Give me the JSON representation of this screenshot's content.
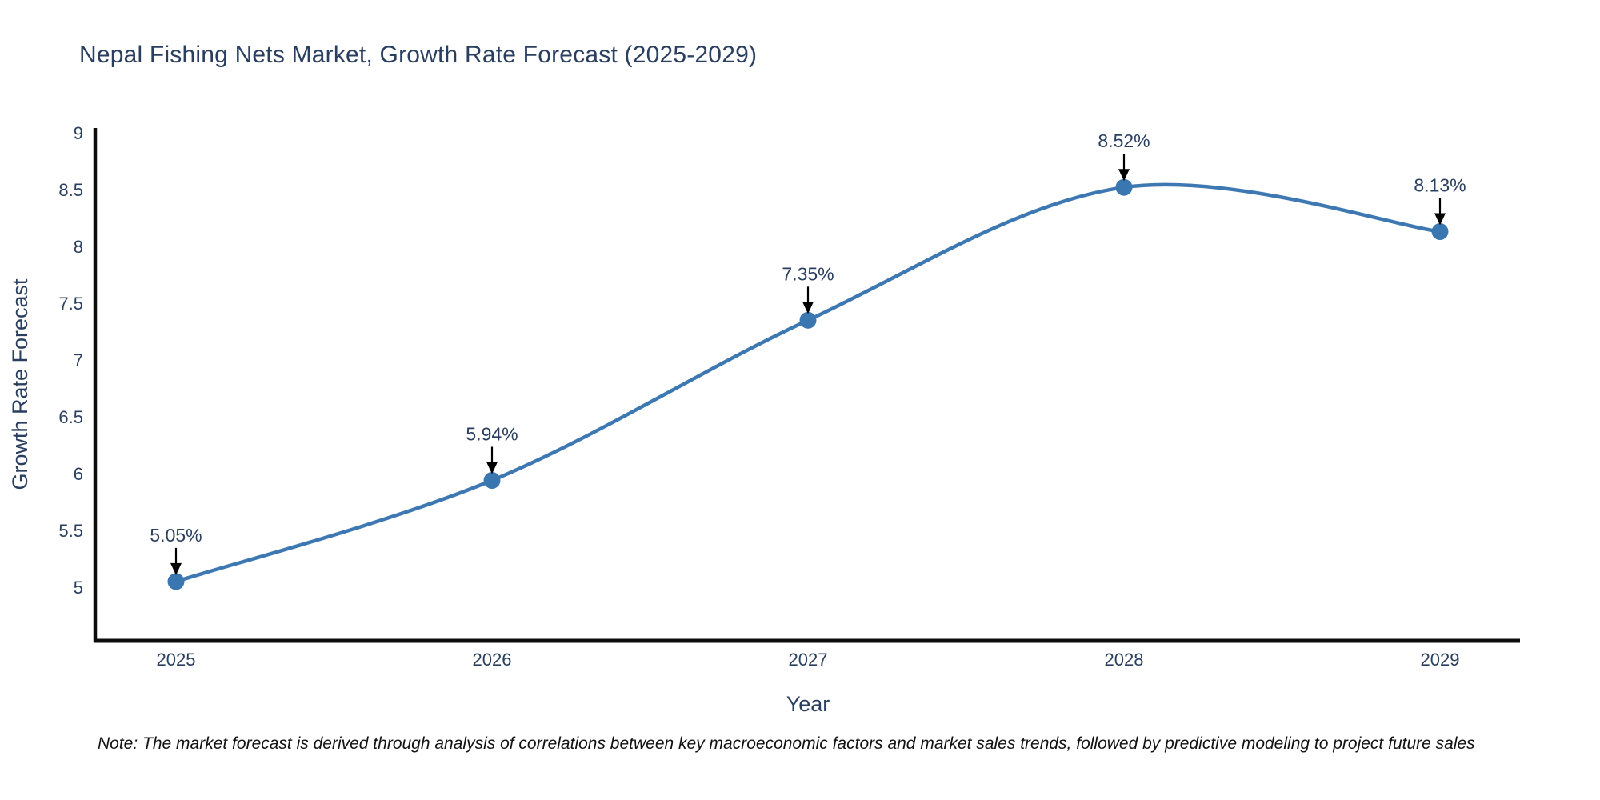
{
  "header": {
    "title": "Nepal Fishing Nets Market, Growth Rate Forecast (2025-2029)"
  },
  "note": {
    "text": "Note: The market forecast is derived through analysis of correlations between key macroeconomic factors and market sales trends, followed by predictive modeling to project future sales"
  },
  "chart_data": {
    "type": "line",
    "title": "Nepal Fishing Nets Market, Growth Rate Forecast (2025-2029)",
    "categories": [
      "2025",
      "2026",
      "2027",
      "2028",
      "2029"
    ],
    "x": [
      2025,
      2026,
      2027,
      2028,
      2029
    ],
    "series": [
      {
        "name": "Growth Rate Forecast",
        "values": [
          5.05,
          5.94,
          7.35,
          8.52,
          8.13
        ]
      }
    ],
    "point_labels": [
      "5.05%",
      "5.94%",
      "7.35%",
      "8.52%",
      "8.13%"
    ],
    "xlabel": "Year",
    "ylabel": "Growth Rate Forecast",
    "yticks": [
      5,
      5.5,
      6,
      6.5,
      7,
      7.5,
      8,
      8.5,
      9
    ],
    "ylim": [
      4.53,
      9.04
    ],
    "xlim": [
      2024.74,
      2029.25
    ],
    "grid": false,
    "legend_position": "none",
    "line_shape": "spline",
    "annotations": "arrow-down-to-point",
    "colors": {
      "line": "#3d78b2",
      "marker": "#3a76b0",
      "axis": "#0d0d0d",
      "text": "#2a3f5f",
      "annotation_text": "#2a3f5f",
      "annotation_arrow": "#000000",
      "background": "#ffffff"
    }
  }
}
